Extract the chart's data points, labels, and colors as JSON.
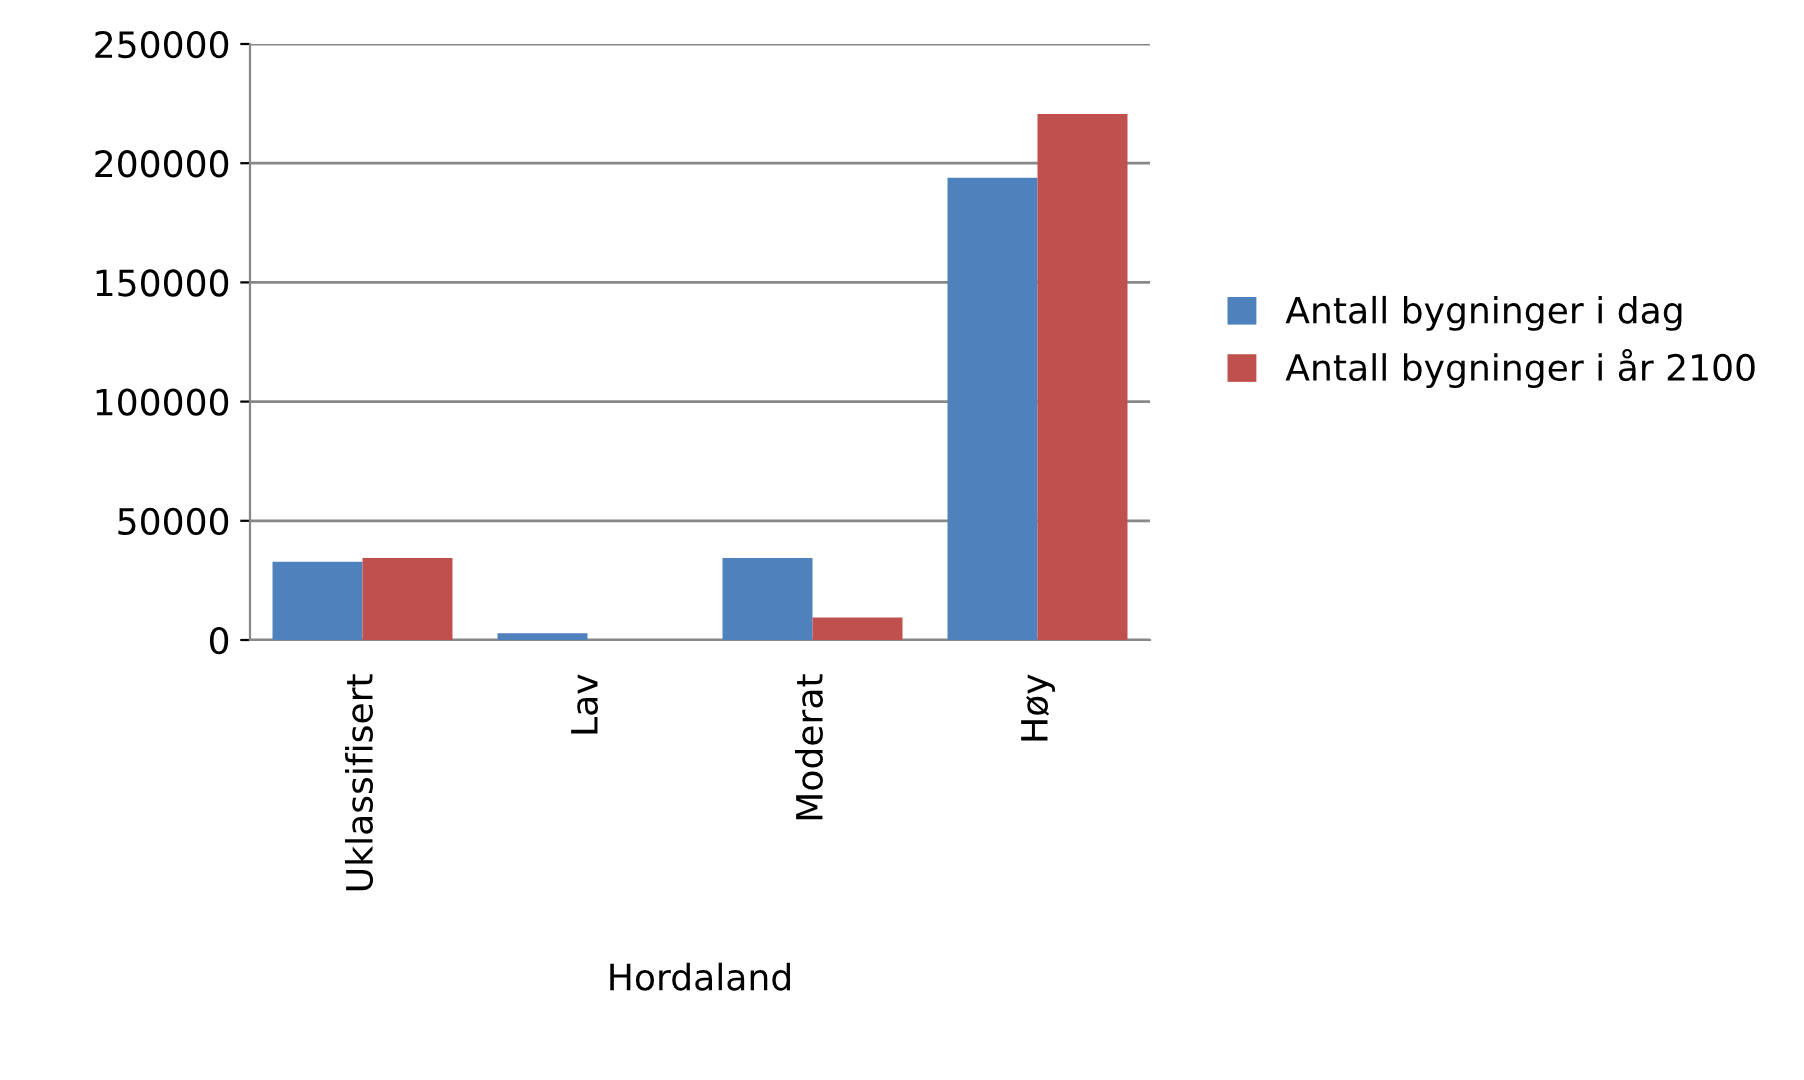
{
  "chart_data": {
    "type": "bar",
    "xlabel": "Hordaland",
    "categories": [
      "Uklassifisert",
      "Lav",
      "Moderat",
      "Høy"
    ],
    "series": [
      {
        "name": "Antall bygninger i dag",
        "color": "#4f81bd",
        "values": [
          32800,
          2800,
          34400,
          193900
        ]
      },
      {
        "name": "Antall bygninger i år 2100",
        "color": "#c0504d",
        "values": [
          34400,
          0,
          9400,
          220600
        ]
      }
    ],
    "ylim": [
      0,
      250000
    ],
    "yticks": [
      0,
      50000,
      100000,
      150000,
      200000,
      250000
    ],
    "grid": "y",
    "legend": "right"
  }
}
